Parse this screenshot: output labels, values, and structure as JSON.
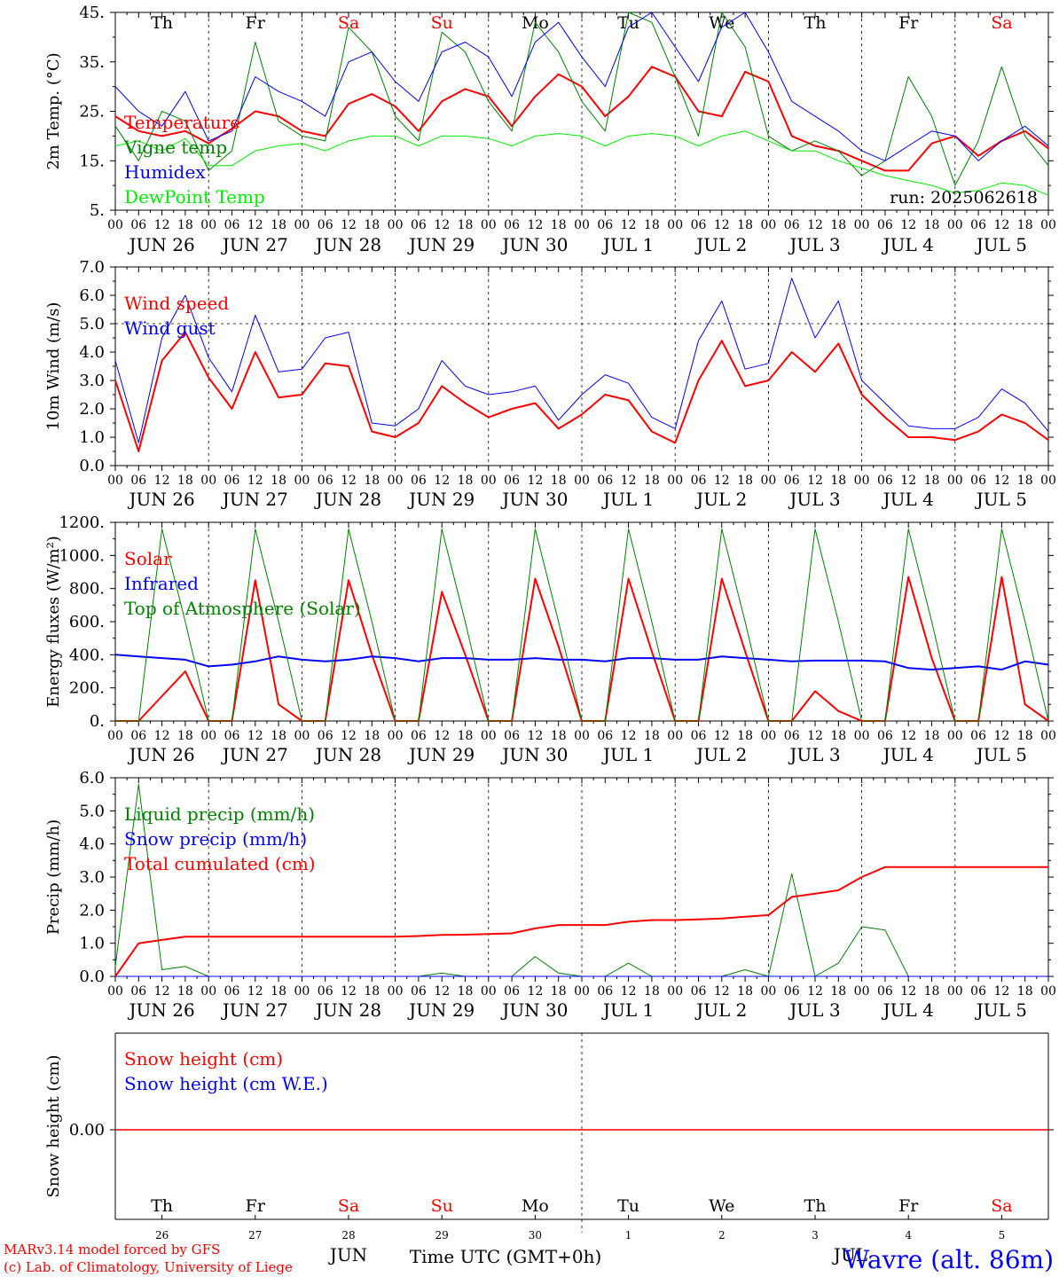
{
  "chart_data": [
    {
      "type": "line",
      "ylabel": "2m Temp. (°C)",
      "yticks": [
        "45.",
        "35.",
        "25.",
        "15.",
        "5."
      ],
      "ylim": [
        5,
        45
      ],
      "legend": [
        "Temperature",
        "Vigne temp",
        "Humidex",
        "DewPoint Temp"
      ],
      "annotation": "run: 2025062618",
      "day_names": [
        {
          "label": "Th",
          "weekend": false
        },
        {
          "label": "Fr",
          "weekend": false
        },
        {
          "label": "Sa",
          "weekend": true
        },
        {
          "label": "Su",
          "weekend": true
        },
        {
          "label": "Mo",
          "weekend": false
        },
        {
          "label": "Tu",
          "weekend": false
        },
        {
          "label": "We",
          "weekend": false
        },
        {
          "label": "Th",
          "weekend": false
        },
        {
          "label": "Fr",
          "weekend": false
        },
        {
          "label": "Sa",
          "weekend": true
        }
      ],
      "x_hours": [
        0,
        6,
        12,
        18,
        24,
        30,
        36,
        42,
        48,
        54,
        60,
        66,
        72,
        78,
        84,
        90,
        96,
        102,
        108,
        114,
        120,
        126,
        132,
        138,
        144,
        150,
        156,
        162,
        168,
        174,
        180,
        186,
        192,
        198,
        204,
        210,
        216,
        222,
        228,
        234,
        240
      ],
      "series": [
        {
          "name": "Temperature",
          "color": "#ff0000",
          "width": 2,
          "values": [
            24,
            21,
            20,
            21,
            18.5,
            21.5,
            25,
            24,
            21,
            20,
            26.5,
            28.5,
            26,
            21,
            27,
            29.5,
            28,
            22,
            28,
            32.5,
            30,
            24,
            28,
            34,
            32,
            25,
            24,
            33,
            31,
            20,
            18,
            17,
            15,
            13,
            13,
            18.5,
            20,
            16,
            19,
            21,
            17.5
          ]
        },
        {
          "name": "Vigne temp",
          "color": "#008000",
          "width": 1,
          "values": [
            22,
            15,
            25,
            23,
            13,
            17,
            39,
            23,
            20,
            19,
            42,
            37,
            24,
            19,
            41,
            37,
            27,
            21,
            43,
            37,
            27,
            21,
            45,
            43,
            32,
            20,
            45,
            38,
            20,
            17,
            19,
            17,
            12,
            15,
            32,
            24,
            10,
            19,
            34,
            20,
            14
          ]
        },
        {
          "name": "Humidex",
          "color": "#0000ff",
          "width": 1,
          "values": [
            30,
            25,
            22,
            29,
            19,
            21,
            32,
            29,
            27,
            24,
            35,
            37,
            31,
            27,
            37,
            39,
            36,
            28,
            39,
            43,
            36,
            30,
            42,
            45,
            38,
            31,
            42,
            45,
            37,
            27,
            24,
            21,
            17,
            15,
            18,
            21,
            20,
            15,
            19,
            22,
            18
          ]
        },
        {
          "name": "DewPoint Temp",
          "color": "#00ee00",
          "width": 1,
          "values": [
            18,
            19,
            17,
            19.5,
            14,
            14,
            17,
            18,
            18.5,
            17,
            19,
            20,
            20,
            18,
            20,
            20,
            19.5,
            18,
            20,
            20.5,
            20,
            18,
            20,
            20.5,
            20,
            18,
            20,
            21,
            19,
            17,
            17,
            15,
            13.5,
            12,
            11,
            10,
            8.5,
            9,
            10.5,
            10,
            8
          ]
        }
      ]
    },
    {
      "type": "line",
      "ylabel": "10m Wind (m/s)",
      "yticks": [
        "7.0",
        "6.0",
        "5.0",
        "4.0",
        "3.0",
        "2.0",
        "1.0",
        "0.0"
      ],
      "ylim": [
        0,
        7
      ],
      "reference_line": 5,
      "legend": [
        "Wind speed",
        "Wind gust"
      ],
      "x_hours": [
        0,
        6,
        12,
        18,
        24,
        30,
        36,
        42,
        48,
        54,
        60,
        66,
        72,
        78,
        84,
        90,
        96,
        102,
        108,
        114,
        120,
        126,
        132,
        138,
        144,
        150,
        156,
        162,
        168,
        174,
        180,
        186,
        192,
        198,
        204,
        210,
        216,
        222,
        228,
        234,
        240
      ],
      "series": [
        {
          "name": "Wind speed",
          "color": "#ff0000",
          "width": 2,
          "values": [
            3.0,
            0.5,
            3.7,
            4.7,
            3.1,
            2.0,
            4.0,
            2.4,
            2.5,
            3.6,
            3.5,
            1.2,
            1.0,
            1.5,
            2.8,
            2.2,
            1.7,
            2.0,
            2.2,
            1.3,
            1.8,
            2.5,
            2.3,
            1.2,
            0.8,
            3.0,
            4.4,
            2.8,
            3.0,
            4.0,
            3.3,
            4.3,
            2.5,
            1.7,
            1.0,
            1.0,
            0.9,
            1.2,
            1.8,
            1.5,
            0.9
          ]
        },
        {
          "name": "Wind gust",
          "color": "#0000ff",
          "width": 1,
          "values": [
            3.7,
            0.8,
            4.5,
            6.0,
            3.8,
            2.6,
            5.3,
            3.3,
            3.4,
            4.5,
            4.7,
            1.5,
            1.4,
            2.0,
            3.7,
            2.8,
            2.5,
            2.6,
            2.8,
            1.6,
            2.5,
            3.2,
            2.9,
            1.7,
            1.3,
            4.4,
            5.8,
            3.4,
            3.6,
            6.6,
            4.5,
            5.8,
            3.0,
            2.2,
            1.4,
            1.3,
            1.3,
            1.7,
            2.7,
            2.2,
            1.2
          ]
        }
      ]
    },
    {
      "type": "line",
      "ylabel": "Energy fluxes (W/m²)",
      "yticks": [
        "1200.",
        "1000.",
        "800.",
        "600.",
        "400.",
        "200.",
        "0."
      ],
      "ylim": [
        0,
        1200
      ],
      "legend": [
        "Solar",
        "Infrared",
        "Top of Atmosphere (Solar)"
      ],
      "x_hours": [
        0,
        6,
        12,
        18,
        24,
        30,
        36,
        42,
        48,
        54,
        60,
        66,
        72,
        78,
        84,
        90,
        96,
        102,
        108,
        114,
        120,
        126,
        132,
        138,
        144,
        150,
        156,
        162,
        168,
        174,
        180,
        186,
        192,
        198,
        204,
        210,
        216,
        222,
        228,
        234,
        240
      ],
      "series": [
        {
          "name": "Solar",
          "color": "#ff0000",
          "width": 2,
          "values": [
            0,
            0,
            150,
            300,
            0,
            0,
            850,
            100,
            0,
            0,
            850,
            400,
            0,
            0,
            780,
            400,
            0,
            0,
            860,
            450,
            0,
            0,
            860,
            420,
            0,
            0,
            860,
            420,
            0,
            0,
            180,
            60,
            0,
            0,
            870,
            380,
            0,
            0,
            870,
            100,
            0
          ]
        },
        {
          "name": "Infrared",
          "color": "#0000ff",
          "width": 2,
          "values": [
            400,
            390,
            380,
            370,
            330,
            340,
            360,
            390,
            370,
            360,
            370,
            390,
            380,
            360,
            380,
            380,
            370,
            370,
            380,
            370,
            370,
            360,
            380,
            380,
            370,
            370,
            390,
            380,
            370,
            360,
            365,
            365,
            365,
            360,
            320,
            310,
            320,
            330,
            310,
            360,
            340
          ]
        },
        {
          "name": "Top of Atmosphere (Solar)",
          "color": "#008000",
          "width": 1,
          "values": [
            0,
            0,
            1160,
            600,
            0,
            0,
            1160,
            600,
            0,
            0,
            1160,
            600,
            0,
            0,
            1160,
            600,
            0,
            0,
            1160,
            600,
            0,
            0,
            1160,
            600,
            0,
            0,
            1160,
            600,
            0,
            0,
            1160,
            600,
            0,
            0,
            1160,
            600,
            0,
            0,
            1160,
            600,
            0
          ]
        }
      ]
    },
    {
      "type": "line",
      "ylabel": "Precip (mm/h)",
      "yticks": [
        "6.0",
        "5.0",
        "4.0",
        "3.0",
        "2.0",
        "1.0",
        "0.0"
      ],
      "ylim": [
        0,
        6
      ],
      "legend": [
        "Liquid precip (mm/h)",
        "Snow precip (mm/h)",
        "Total cumulated (cm)"
      ],
      "x_hours": [
        0,
        6,
        12,
        18,
        24,
        30,
        36,
        42,
        48,
        54,
        60,
        66,
        72,
        78,
        84,
        90,
        96,
        102,
        108,
        114,
        120,
        126,
        132,
        138,
        144,
        150,
        156,
        162,
        168,
        174,
        180,
        186,
        192,
        198,
        204,
        210,
        216,
        222,
        228,
        234,
        240
      ],
      "series": [
        {
          "name": "Liquid precip (mm/h)",
          "color": "#008000",
          "width": 1,
          "values": [
            0.3,
            5.8,
            0.2,
            0.3,
            0,
            0,
            0,
            0,
            0,
            0,
            0,
            0,
            0,
            0,
            0.1,
            0,
            0,
            0,
            0.6,
            0.1,
            0,
            0,
            0.4,
            0,
            0,
            0,
            0,
            0.2,
            0,
            3.1,
            0,
            0.4,
            1.5,
            1.4,
            0,
            0,
            0,
            0,
            0,
            0,
            0
          ]
        },
        {
          "name": "Snow precip (mm/h)",
          "color": "#0000ff",
          "width": 1,
          "values": [
            0,
            0,
            0,
            0,
            0,
            0,
            0,
            0,
            0,
            0,
            0,
            0,
            0,
            0,
            0,
            0,
            0,
            0,
            0,
            0,
            0,
            0,
            0,
            0,
            0,
            0,
            0,
            0,
            0,
            0,
            0,
            0,
            0,
            0,
            0,
            0,
            0,
            0,
            0,
            0,
            0
          ]
        },
        {
          "name": "Total cumulated (cm)",
          "color": "#ff0000",
          "width": 2,
          "values": [
            0,
            1.0,
            1.1,
            1.2,
            1.2,
            1.2,
            1.2,
            1.2,
            1.2,
            1.2,
            1.2,
            1.2,
            1.2,
            1.22,
            1.25,
            1.26,
            1.28,
            1.3,
            1.45,
            1.55,
            1.55,
            1.55,
            1.65,
            1.7,
            1.7,
            1.72,
            1.75,
            1.8,
            1.85,
            2.4,
            2.5,
            2.6,
            3.0,
            3.3,
            3.3,
            3.3,
            3.3,
            3.3,
            3.3,
            3.3,
            3.3
          ]
        }
      ]
    },
    {
      "type": "line",
      "ylabel": "Snow height (cm)",
      "yticks": [
        "0.00"
      ],
      "ylim": [
        -1,
        1
      ],
      "legend": [
        "Snow height (cm)",
        "Snow height (cm W.E.)"
      ],
      "day_names": [
        {
          "label": "Th",
          "weekend": false
        },
        {
          "label": "Fr",
          "weekend": false
        },
        {
          "label": "Sa",
          "weekend": true
        },
        {
          "label": "Su",
          "weekend": true
        },
        {
          "label": "Mo",
          "weekend": false
        },
        {
          "label": "Tu",
          "weekend": false
        },
        {
          "label": "We",
          "weekend": false
        },
        {
          "label": "Th",
          "weekend": false
        },
        {
          "label": "Fr",
          "weekend": false
        },
        {
          "label": "Sa",
          "weekend": true
        }
      ],
      "day_numbers": [
        "26",
        "27",
        "28",
        "29",
        "30",
        "1",
        "2",
        "3",
        "4",
        "5"
      ],
      "month_labels": [
        "JUN",
        "JUL"
      ],
      "xlabel": "Time UTC (GMT+0h)",
      "series": [
        {
          "name": "Snow height (cm)",
          "color": "#ff0000",
          "width": 1,
          "values": [
            0,
            0
          ]
        },
        {
          "name": "Snow height (cm W.E.)",
          "color": "#0000ff",
          "width": 1,
          "values": [
            0,
            0
          ]
        }
      ]
    }
  ],
  "x_axis": {
    "hour_ticks": [
      "00",
      "06",
      "12",
      "18"
    ],
    "final_tick": "00",
    "date_labels": [
      "JUN 26",
      "JUN 27",
      "JUN 28",
      "JUN 29",
      "JUN 30",
      "JUL  1",
      "JUL  2",
      "JUL  3",
      "JUL  4",
      "JUL  5"
    ]
  },
  "footer": {
    "credit_line1": "MARv3.14 model forced by GFS",
    "credit_line2": "(c) Lab. of Climatology, University of Liege",
    "station": "Wavre (alt. 86m)"
  },
  "colors": {
    "red": "#ff0000",
    "blue": "#0000ff",
    "green": "#008000",
    "light_green": "#00ee00",
    "axis": "#000000"
  }
}
